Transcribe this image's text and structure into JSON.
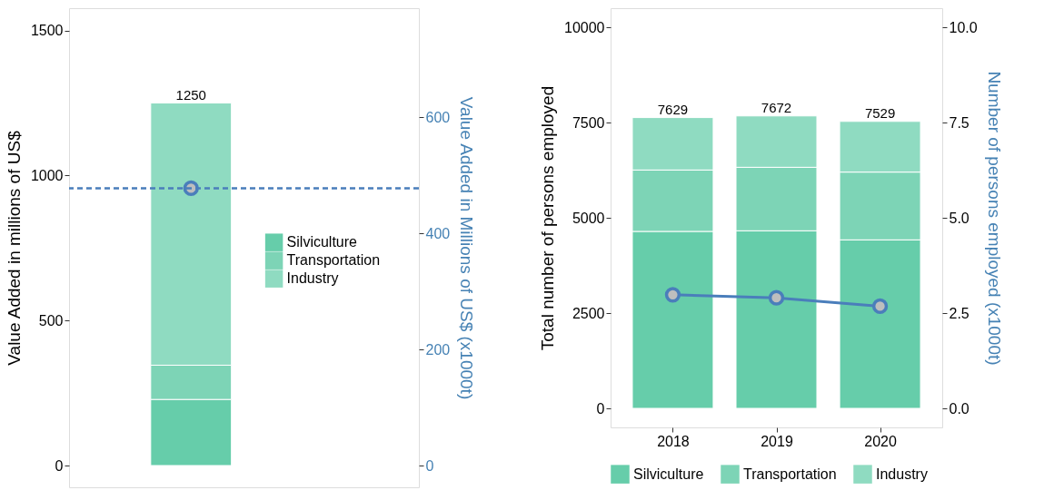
{
  "chart_data": [
    {
      "type": "bar",
      "stacked": true,
      "categories": [
        null
      ],
      "ylabel": "Value Added in millions of US$",
      "y2label": "Value Added in Millions of US$ (x1000t)",
      "ylim": [
        -75,
        1577
      ],
      "yticks": [
        0,
        500,
        1000,
        1500
      ],
      "y2lim": [
        -37.5,
        788.5
      ],
      "y2ticks": [
        0,
        200,
        400,
        600
      ],
      "legend": "right",
      "totals": [
        "1250"
      ],
      "series": [
        {
          "name": "Silviculture",
          "color": "#66cdaa",
          "values": [
            228
          ]
        },
        {
          "name": "Transportation",
          "color": "#7dd4b6",
          "values": [
            118
          ]
        },
        {
          "name": "Industry",
          "color": "#8fdbc1",
          "values": [
            904
          ]
        },
        {
          "type": "scatter",
          "axis": "y2",
          "marker": "circle",
          "color": "#4a7ebb",
          "values": [
            478
          ]
        }
      ],
      "ref_lines": [
        {
          "axis": "y2",
          "value": 478,
          "color": "#4a7ebb",
          "line_style": "dashed"
        }
      ]
    },
    {
      "type": "bar",
      "stacked": true,
      "categories": [
        "2018",
        "2019",
        "2020"
      ],
      "ylabel": "Total number of persons employed",
      "y2label": "Number of persons employed (x1000t)",
      "ylim": [
        -500,
        10500
      ],
      "yticks": [
        0,
        2500,
        5000,
        7500,
        10000
      ],
      "y2lim": [
        -0.5,
        10.5
      ],
      "y2ticks": [
        {
          "value": 0,
          "label": "0.0"
        },
        {
          "value": 2.5,
          "label": "2.5"
        },
        {
          "value": 5,
          "label": "5.0"
        },
        {
          "value": 7.5,
          "label": "7.5"
        },
        {
          "value": 10,
          "label": "10.0"
        }
      ],
      "legend": "bottom",
      "totals": [
        "7629",
        "7672",
        "7529"
      ],
      "series": [
        {
          "name": "Silviculture",
          "color": "#66cdaa",
          "values": [
            4643,
            4659,
            4421
          ]
        },
        {
          "name": "Transportation",
          "color": "#7dd4b6",
          "values": [
            1611,
            1666,
            1778
          ]
        },
        {
          "name": "Industry",
          "color": "#8fdbc1",
          "values": [
            1375,
            1347,
            1330
          ]
        },
        {
          "type": "line",
          "axis": "y2",
          "marker": "circle",
          "color": "#4a7ebb",
          "values": [
            2.98,
            2.9,
            2.68
          ]
        }
      ]
    }
  ]
}
